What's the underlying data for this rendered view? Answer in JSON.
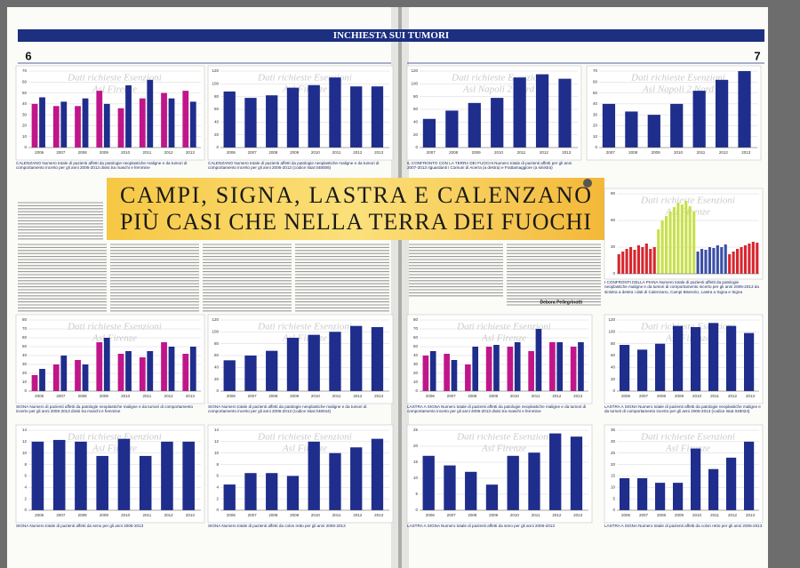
{
  "header": {
    "section": "INCHIESTA SUI TUMORI",
    "page_left": "6",
    "page_right": "7"
  },
  "headline": {
    "line1": "CAMPI, SIGNA, LASTRA E CALENZANO",
    "line2": "PIÙ CASI CHE NELLA TERRA DEI FUOCHI"
  },
  "byline": "Debora Pellegrinotti",
  "panels": [
    {
      "caption": "CALENZANO Numero totale di pazienti affetti da patologie neoplastiche maligne e da tumori di comportamento incerto per gli anni 2006-2013 divisi tra maschi e femmine",
      "watermark": [
        "Dati richieste Esenzioni",
        "Asl Firenze"
      ],
      "categories": [
        "2006",
        "2007",
        "2008",
        "2009",
        "2010",
        "2011",
        "2012",
        "2013"
      ],
      "ylim": [
        0,
        70
      ],
      "yticks": [
        0,
        10,
        20,
        30,
        40,
        50,
        60,
        70
      ],
      "series": [
        {
          "color": "#c0168a",
          "values": [
            40,
            38,
            38,
            52,
            36,
            45,
            50,
            52
          ]
        },
        {
          "color": "#1f2d8c",
          "values": [
            46,
            42,
            45,
            40,
            57,
            62,
            45,
            42
          ]
        }
      ]
    },
    {
      "caption": "CALENZANO Numero totale di pazienti affetti da patologie neoplastiche maligne e da tumori di comportamento incerto per gli anni 2006-2013 (codice Istat 048006)",
      "watermark": [
        "Dati richieste Esenzioni",
        "Asl Firenze"
      ],
      "categories": [
        "2006",
        "2007",
        "2008",
        "2009",
        "2010",
        "2011",
        "2012",
        "2013"
      ],
      "ylim": [
        0,
        120
      ],
      "yticks": [
        0,
        20,
        40,
        60,
        80,
        100,
        120
      ],
      "series": [
        {
          "color": "#1f2d8c",
          "values": [
            88,
            78,
            82,
            94,
            98,
            110,
            96,
            96
          ]
        }
      ]
    },
    {
      "caption": "IL CONFRONTO CON LA TERRA DEI FUOCHI Numero totale di pazienti affetti per gli anni 2007-2013 riguardanti i Comuni di Acerra (a destra) e Frattamaggiore (a sinistra)",
      "watermark": [
        "Dati richieste Esenzioni",
        "Asl Napoli 2 Nord"
      ],
      "categories": [
        "2007",
        "2008",
        "2009",
        "2010",
        "2011",
        "2012",
        "2013"
      ],
      "ylim": [
        0,
        120
      ],
      "yticks": [
        0,
        20,
        40,
        60,
        80,
        100,
        120
      ],
      "series": [
        {
          "color": "#1f2d8c",
          "values": [
            45,
            58,
            70,
            78,
            110,
            115,
            108
          ]
        }
      ]
    },
    {
      "watermark": [
        "Dati richieste Esenzioni",
        "Asl Napoli 2 Nord"
      ],
      "categories": [
        "2007",
        "2008",
        "2009",
        "2010",
        "2011",
        "2012",
        "2013"
      ],
      "ylim": [
        0,
        70
      ],
      "yticks": [
        0,
        10,
        20,
        30,
        40,
        50,
        60,
        70
      ],
      "series": [
        {
          "color": "#1f2d8c",
          "values": [
            40,
            33,
            30,
            40,
            52,
            62,
            70
          ]
        }
      ]
    },
    {
      "caption": "I CONFRONTI DELLA PIANA Numero totale di pazienti affetti da patologie neoplastiche maligne e da tumori di comportamento incerto per gli anni 2006-2013 da sinistra a destra i dati di Calenzano, Campi Bisenzio, Lastra a Signa e Signa",
      "watermark": [
        "Dati richieste Esenzioni",
        "Asl Firenze"
      ],
      "sequential": true,
      "ylim": [
        0,
        90
      ],
      "yticks": [
        0,
        30,
        60,
        90
      ],
      "series": [
        {
          "color": "#d8262e",
          "values": [
            22,
            25,
            28,
            30,
            27,
            32,
            30,
            34,
            28,
            30
          ]
        },
        {
          "color": "#c8e04a",
          "values": [
            50,
            60,
            65,
            70,
            75,
            80,
            78,
            82,
            76,
            70
          ]
        },
        {
          "color": "#3b4fa8",
          "values": [
            25,
            28,
            27,
            30,
            29,
            32,
            30,
            33
          ]
        },
        {
          "color": "#d8262e",
          "values": [
            22,
            25,
            28,
            30,
            32,
            34,
            36,
            35
          ]
        }
      ]
    },
    {
      "caption": "SIGNA Numero di pazienti affetti da patologie neoplastiche maligne e da tumori di comportamento incerto per gli anni 2006-2013 divisi tra maschi e femmine",
      "watermark": [
        "Dati richieste Esenzioni",
        "Asl Firenze"
      ],
      "categories": [
        "2006",
        "2007",
        "2008",
        "2009",
        "2010",
        "2011",
        "2012",
        "2013"
      ],
      "ylim": [
        0,
        80
      ],
      "yticks": [
        0,
        10,
        20,
        30,
        40,
        50,
        60,
        70,
        80
      ],
      "series": [
        {
          "color": "#c0168a",
          "values": [
            18,
            30,
            35,
            55,
            42,
            38,
            55,
            42
          ]
        },
        {
          "color": "#1f2d8c",
          "values": [
            25,
            40,
            30,
            60,
            45,
            45,
            50,
            50
          ]
        }
      ]
    },
    {
      "caption": "SIGNA Numero totale di pazienti affetti da patologie neoplastiche maligne e da tumori di comportamento incerto per gli anni 2006-2013 (codice Istat 048044)",
      "watermark": [
        "Dati richieste Esenzioni",
        "Asl Firenze"
      ],
      "categories": [
        "2006",
        "2007",
        "2008",
        "2009",
        "2010",
        "2011",
        "2012",
        "2013"
      ],
      "ylim": [
        0,
        120
      ],
      "yticks": [
        0,
        20,
        40,
        60,
        80,
        100,
        120
      ],
      "series": [
        {
          "color": "#1f2d8c",
          "values": [
            52,
            60,
            68,
            90,
            95,
            100,
            110,
            108
          ]
        }
      ]
    },
    {
      "caption": "LASTRA A SIGNA Numero totale di pazienti affetti da patologie neoplastiche maligne e da tumori di comportamento incerto per gli anni 2006-2013 divisi tra maschi e femmine",
      "watermark": [
        "Dati richieste Esenzioni",
        "Asl Firenze"
      ],
      "categories": [
        "2006",
        "2007",
        "2008",
        "2009",
        "2010",
        "2011",
        "2012",
        "2013"
      ],
      "ylim": [
        0,
        80
      ],
      "yticks": [
        0,
        10,
        20,
        30,
        40,
        50,
        60,
        70,
        80
      ],
      "series": [
        {
          "color": "#c0168a",
          "values": [
            40,
            42,
            30,
            50,
            50,
            45,
            55,
            50
          ]
        },
        {
          "color": "#1f2d8c",
          "values": [
            45,
            35,
            50,
            52,
            55,
            70,
            55,
            55
          ]
        }
      ]
    },
    {
      "caption": "LASTRA A SIGNA Numero totale di pazienti affetti da patologie neoplastiche maligne e da tumori di comportamento incerto per gli anni 2006-2013 (codice Istat 048024)",
      "watermark": [
        "Dati richieste Esenzioni",
        "Asl Firenze"
      ],
      "categories": [
        "2006",
        "2007",
        "2008",
        "2009",
        "2010",
        "2011",
        "2012",
        "2013"
      ],
      "ylim": [
        0,
        120
      ],
      "yticks": [
        0,
        20,
        40,
        60,
        80,
        100,
        120
      ],
      "series": [
        {
          "color": "#1f2d8c",
          "values": [
            78,
            70,
            80,
            110,
            108,
            115,
            110,
            98
          ]
        }
      ]
    },
    {
      "caption": "SIGNA Numero totale di pazienti affetti da seno per gli anni 2006-2013",
      "watermark": [
        "Dati richieste Esenzioni",
        "Asl Firenze"
      ],
      "categories": [
        "2006",
        "2007",
        "2008",
        "2009",
        "2010",
        "2011",
        "2012",
        "2013"
      ],
      "ylim": [
        0,
        14
      ],
      "yticks": [
        0,
        2,
        4,
        6,
        8,
        10,
        12,
        14
      ],
      "series": [
        {
          "color": "#1f2d8c",
          "values": [
            12,
            12.3,
            12,
            9.5,
            12.5,
            9.5,
            12,
            12
          ]
        }
      ]
    },
    {
      "caption": "SIGNA Numero totale di pazienti affetti da colon retto per gli anni 2006-2013",
      "watermark": [
        "Dati richieste Esenzioni",
        "Asl Firenze"
      ],
      "categories": [
        "2006",
        "2007",
        "2008",
        "2009",
        "2010",
        "2011",
        "2012",
        "2013"
      ],
      "ylim": [
        0,
        14
      ],
      "yticks": [
        0,
        2,
        4,
        6,
        8,
        10,
        12,
        14
      ],
      "series": [
        {
          "color": "#1f2d8c",
          "values": [
            4.5,
            6.5,
            6.5,
            6,
            12,
            10,
            11,
            12.5
          ]
        }
      ]
    },
    {
      "caption": "LASTRA A SIGNA Numero totale di pazienti affetti da seno per gli anni 2006-2013",
      "watermark": [
        "Dati richieste Esenzioni",
        "Asl Firenze"
      ],
      "categories": [
        "2006",
        "2007",
        "2008",
        "2009",
        "2010",
        "2011",
        "2012",
        "2013"
      ],
      "ylim": [
        0,
        25
      ],
      "yticks": [
        0,
        5,
        10,
        15,
        20,
        25
      ],
      "series": [
        {
          "color": "#1f2d8c",
          "values": [
            17,
            14,
            12,
            8,
            17,
            18,
            24,
            23
          ]
        }
      ]
    },
    {
      "caption": "LASTRA A SIGNA Numero totale di pazienti affetti da colon retto per gli anni 2006-2013",
      "watermark": [
        "Dati richieste Esenzioni",
        "Asl Firenze"
      ],
      "categories": [
        "2006",
        "2007",
        "2008",
        "2009",
        "2010",
        "2011",
        "2012",
        "2013"
      ],
      "ylim": [
        0,
        35
      ],
      "yticks": [
        0,
        5,
        10,
        15,
        20,
        25,
        30,
        35
      ],
      "series": [
        {
          "color": "#1f2d8c",
          "values": [
            14,
            14,
            12,
            12,
            27,
            18,
            23,
            30
          ]
        }
      ]
    }
  ]
}
